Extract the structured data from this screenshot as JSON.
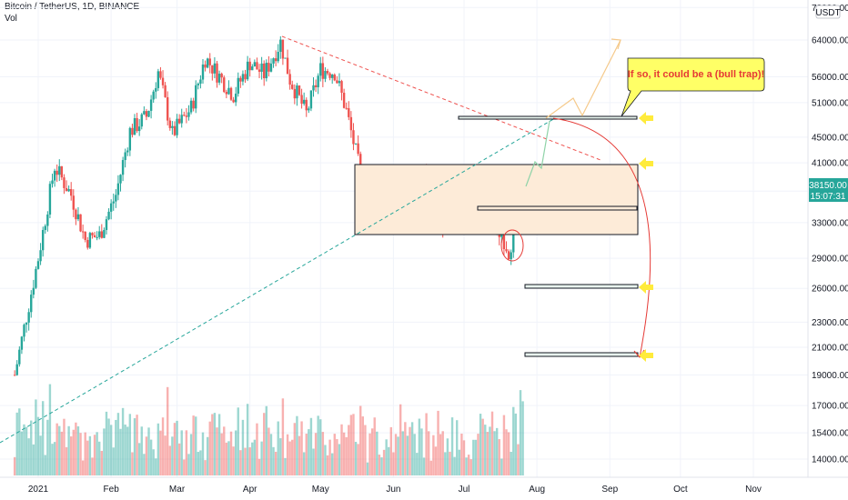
{
  "header": {
    "symbol_line": "Bitcoin / TetherUS, 1D, BINANCE",
    "volume_label": "Vol"
  },
  "price_axis": {
    "currency_badge": "USDT",
    "last_price": "38150.00",
    "countdown": "15:07:31",
    "last_price_color": "#26a69a"
  },
  "annotation": {
    "callout_text": "If so, it could be a (bull trap)!",
    "callout_bg": "#ffff66",
    "callout_text_color": "#e53935"
  },
  "colors": {
    "up": "#26a69a",
    "down": "#ef5350",
    "range_box_fill": "#fdebd8",
    "trendline_down": "#ef5350",
    "trendline_up": "#26a69a",
    "arrow_marker": "#ffeb3b",
    "bull_path": "#f5c98a",
    "projection": "#e53935"
  },
  "chart_data": {
    "type": "candlestick",
    "title": "",
    "xlabel": "",
    "ylabel": "",
    "y_scale": "log",
    "ylim": [
      12500,
      78000
    ],
    "y_ticks": [
      14000,
      15400,
      17000,
      19000,
      21000,
      23000,
      26000,
      29000,
      33000,
      37000,
      41000,
      45000,
      51000,
      56000,
      64000,
      72000
    ],
    "y_tick_labels": [
      "14000.00",
      "15400.00",
      "17000.00",
      "19000.00",
      "21000.00",
      "23000.00",
      "26000.00",
      "29000.00",
      "33000.00",
      "37000.00",
      "41000.00",
      "45000.00",
      "51000.00",
      "56000.00",
      "64000.00",
      "72000.00"
    ],
    "x_labels": [
      "2021",
      "Feb",
      "Mar",
      "Apr",
      "May",
      "Jun",
      "Jul",
      "Aug",
      "Sep",
      "Oct",
      "Nov"
    ],
    "grid": true,
    "price_path": [
      [
        "2020-12-22",
        19000
      ],
      [
        "2020-12-27",
        23500
      ],
      [
        "2021-01-01",
        29000
      ],
      [
        "2021-01-08",
        40500
      ],
      [
        "2021-01-15",
        36500
      ],
      [
        "2021-01-21",
        31000
      ],
      [
        "2021-01-27",
        31500
      ],
      [
        "2021-02-03",
        36500
      ],
      [
        "2021-02-09",
        46000
      ],
      [
        "2021-02-16",
        48500
      ],
      [
        "2021-02-21",
        57000
      ],
      [
        "2021-02-27",
        45500
      ],
      [
        "2021-03-07",
        50000
      ],
      [
        "2021-03-13",
        60000
      ],
      [
        "2021-03-25",
        52500
      ],
      [
        "2021-04-01",
        59000
      ],
      [
        "2021-04-07",
        56500
      ],
      [
        "2021-04-14",
        63500
      ],
      [
        "2021-04-18",
        55500
      ],
      [
        "2021-04-25",
        49000
      ],
      [
        "2021-05-01",
        57500
      ],
      [
        "2021-05-07",
        57000
      ],
      [
        "2021-05-12",
        49500
      ],
      [
        "2021-05-19",
        38000
      ],
      [
        "2021-05-23",
        34500
      ],
      [
        "2021-05-31",
        37000
      ],
      [
        "2021-06-07",
        33500
      ],
      [
        "2021-06-14",
        40000
      ],
      [
        "2021-06-22",
        32500
      ],
      [
        "2021-06-30",
        35000
      ],
      [
        "2021-07-09",
        33500
      ],
      [
        "2021-07-17",
        31700
      ],
      [
        "2021-07-20",
        29800
      ],
      [
        "2021-07-24",
        33500
      ],
      [
        "2021-07-26",
        38150
      ]
    ],
    "volume_range": [
      0,
      1
    ]
  }
}
